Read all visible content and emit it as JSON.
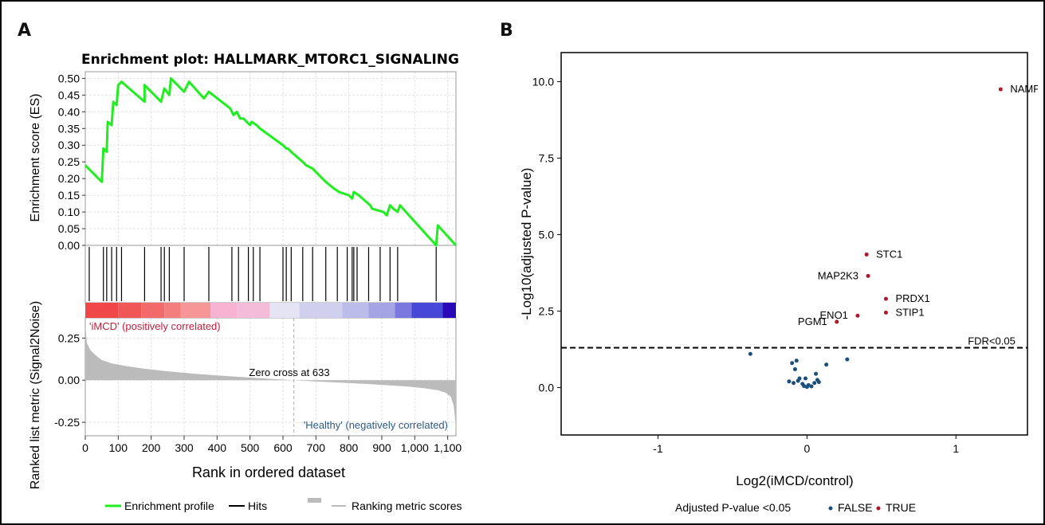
{
  "figure": {
    "panel_a_label": "A",
    "panel_b_label": "B"
  },
  "colors": {
    "enrichment": "#21ee21",
    "hits": "#000000",
    "ranking": "#bbbbbb",
    "false_points": "#1a4e7c",
    "true_points": "#b0182a",
    "pos_label": "#c0213d",
    "neg_label": "#2d5a8a"
  },
  "chart_data": [
    {
      "type": "line",
      "title": "Enrichment plot: HALLMARK_MTORC1_SIGNALING",
      "xlabel": "Rank in ordered dataset",
      "ylabel_top": "Enrichment score (ES)",
      "ylabel_bottom": "Ranked list metric (Signal2Noise)",
      "xlim": [
        0,
        1125
      ],
      "es_ylim": [
        0.0,
        0.52
      ],
      "metric_ylim": [
        -0.33,
        0.37
      ],
      "x_ticks": [
        "0",
        "100",
        "200",
        "300",
        "400",
        "500",
        "600",
        "700",
        "800",
        "900",
        "1,000",
        "1,100"
      ],
      "es_ticks": [
        "0.00",
        "0.05",
        "0.10",
        "0.15",
        "0.20",
        "0.25",
        "0.30",
        "0.35",
        "0.40",
        "0.45",
        "0.50"
      ],
      "metric_ticks": [
        "0.25",
        "0.00",
        "-0.25"
      ],
      "es_profile": {
        "x": [
          0,
          50,
          55,
          65,
          68,
          80,
          85,
          95,
          100,
          110,
          180,
          180,
          230,
          240,
          255,
          260,
          300,
          315,
          360,
          375,
          440,
          450,
          460,
          470,
          480,
          490,
          500,
          505,
          520,
          530,
          600,
          610,
          615,
          625,
          660,
          670,
          690,
          700,
          720,
          730,
          755,
          770,
          800,
          810,
          815,
          830,
          865,
          870,
          905,
          915,
          925,
          935,
          948,
          955,
          1065,
          1070,
          1125
        ],
        "y": [
          0.24,
          0.19,
          0.29,
          0.28,
          0.37,
          0.36,
          0.43,
          0.42,
          0.48,
          0.49,
          0.43,
          0.48,
          0.43,
          0.47,
          0.45,
          0.5,
          0.46,
          0.49,
          0.44,
          0.46,
          0.41,
          0.39,
          0.4,
          0.38,
          0.38,
          0.37,
          0.36,
          0.37,
          0.36,
          0.35,
          0.3,
          0.29,
          0.29,
          0.28,
          0.25,
          0.24,
          0.23,
          0.22,
          0.2,
          0.19,
          0.17,
          0.16,
          0.15,
          0.14,
          0.16,
          0.15,
          0.12,
          0.11,
          0.1,
          0.09,
          0.12,
          0.11,
          0.1,
          0.12,
          0.0,
          0.06,
          0.0
        ]
      },
      "hits": [
        12,
        55,
        65,
        80,
        95,
        110,
        180,
        230,
        240,
        255,
        300,
        375,
        445,
        465,
        495,
        510,
        530,
        600,
        610,
        625,
        660,
        690,
        730,
        765,
        795,
        810,
        815,
        825,
        860,
        895,
        925,
        948,
        1065
      ],
      "ranking_metric": {
        "x": [
          0,
          5,
          15,
          30,
          50,
          80,
          120,
          170,
          240,
          320,
          400,
          480,
          560,
          633,
          700,
          780,
          850,
          920,
          980,
          1030,
          1070,
          1095,
          1110,
          1118,
          1122,
          1125
        ],
        "y": [
          0.33,
          0.22,
          0.18,
          0.15,
          0.12,
          0.1,
          0.085,
          0.07,
          0.055,
          0.04,
          0.028,
          0.018,
          0.008,
          0.0,
          -0.008,
          -0.015,
          -0.022,
          -0.03,
          -0.038,
          -0.048,
          -0.06,
          -0.075,
          -0.1,
          -0.15,
          -0.22,
          -0.3
        ]
      },
      "zero_cross_label": "Zero cross at 633",
      "zero_cross_rank": 633,
      "pos_label": "'iMCD' (positively correlated)",
      "neg_label": "'Healthy' (negatively correlated)",
      "heatmap_colors": [
        "#f04848",
        "#f05858",
        "#f26a6a",
        "#f47e7e",
        "#f69696",
        "#f8b2d2",
        "#f4bcd8",
        "#e4e4f4",
        "#d0d0ee",
        "#bcbcea",
        "#a4a4e4",
        "#7878e0",
        "#4848d8",
        "#2a0ab8"
      ],
      "heatmap_stops": [
        0,
        100,
        170,
        240,
        290,
        380,
        460,
        560,
        650,
        780,
        860,
        940,
        990,
        1085,
        1125
      ],
      "legend": [
        "Enrichment profile",
        "Hits",
        "Ranking metric scores"
      ]
    },
    {
      "type": "scatter",
      "xlabel": "Log2(iMCD/control)",
      "ylabel": "-Log10(adjusted P-value)",
      "xlim": [
        -1.65,
        1.48
      ],
      "ylim": [
        -1.55,
        10.95
      ],
      "x_ticks": [
        -1,
        0,
        1
      ],
      "x_tick_labels": [
        "-1",
        "0",
        "1"
      ],
      "y_ticks": [
        0.0,
        2.5,
        5.0,
        7.5,
        10.0
      ],
      "y_tick_labels": [
        "0.0",
        "2.5",
        "5.0",
        "7.5",
        "10.0"
      ],
      "threshold_y": 1.3,
      "threshold_label": "FDR<0.05",
      "legend_title": "Adjusted P-value <0.05",
      "legend_false": "FALSE",
      "legend_true": "TRUE",
      "true_points": [
        {
          "x": 1.3,
          "y": 9.75,
          "label": "NAMPT"
        },
        {
          "x": 0.4,
          "y": 4.35,
          "label": "STC1"
        },
        {
          "x": 0.41,
          "y": 3.65,
          "label": "MAP2K3"
        },
        {
          "x": 0.53,
          "y": 2.9,
          "label": "PRDX1"
        },
        {
          "x": 0.53,
          "y": 2.45,
          "label": "STIP1"
        },
        {
          "x": 0.34,
          "y": 2.35,
          "label": "ENO1"
        },
        {
          "x": 0.2,
          "y": 2.15,
          "label": "PGM1"
        }
      ],
      "false_points": [
        {
          "x": -0.38,
          "y": 1.1
        },
        {
          "x": -0.1,
          "y": 0.8
        },
        {
          "x": -0.07,
          "y": 0.88
        },
        {
          "x": -0.08,
          "y": 0.6
        },
        {
          "x": -0.05,
          "y": 0.3
        },
        {
          "x": -0.12,
          "y": 0.2
        },
        {
          "x": -0.09,
          "y": 0.15
        },
        {
          "x": -0.06,
          "y": 0.22
        },
        {
          "x": -0.03,
          "y": 0.12
        },
        {
          "x": -0.02,
          "y": 0.05
        },
        {
          "x": 0.0,
          "y": 0.02
        },
        {
          "x": 0.01,
          "y": 0.08
        },
        {
          "x": 0.03,
          "y": 0.04
        },
        {
          "x": 0.05,
          "y": 0.15
        },
        {
          "x": 0.07,
          "y": 0.25
        },
        {
          "x": 0.08,
          "y": 0.18
        },
        {
          "x": 0.06,
          "y": 0.45
        },
        {
          "x": 0.13,
          "y": 0.75
        },
        {
          "x": 0.27,
          "y": 0.92
        },
        {
          "x": -0.01,
          "y": 0.3
        }
      ]
    }
  ]
}
